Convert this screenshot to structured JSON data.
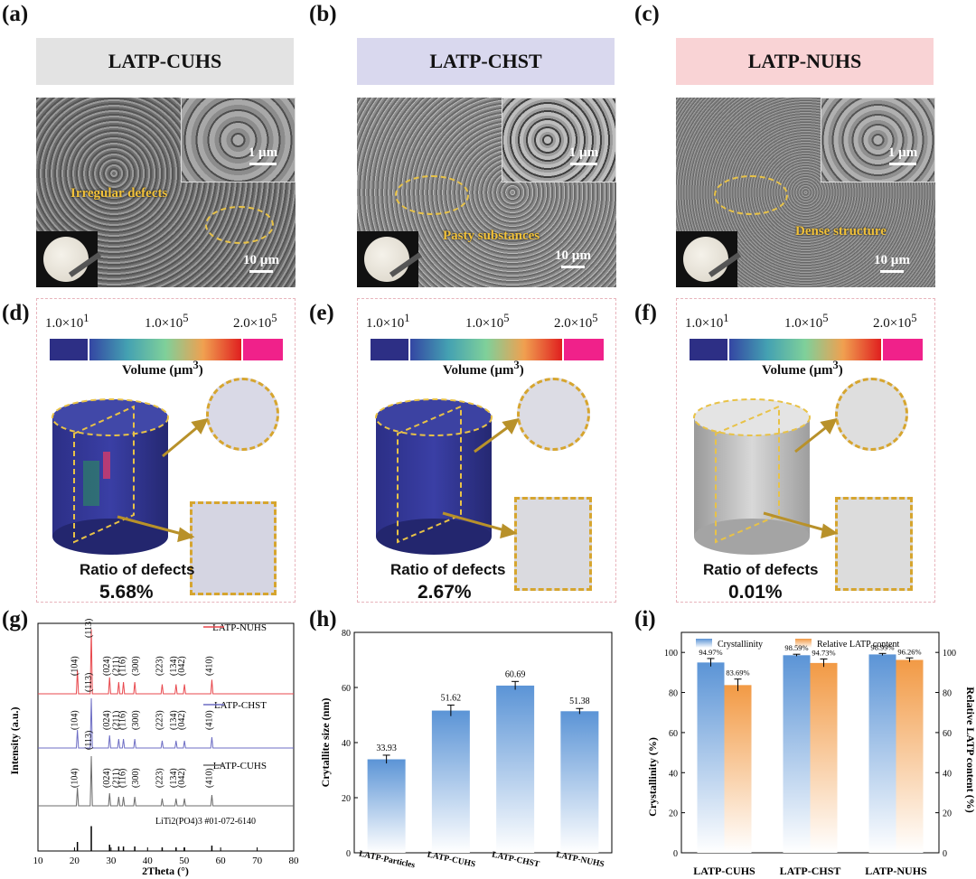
{
  "panel_labels": [
    "(a)",
    "(b)",
    "(c)",
    "(d)",
    "(e)",
    "(f)",
    "(g)",
    "(h)",
    "(i)"
  ],
  "headers": [
    "LATP-CUHS",
    "LATP-CHST",
    "LATP-NUHS"
  ],
  "colors": {
    "hdr_a": "#e3e3e3",
    "hdr_b": "#d9d8ee",
    "hdr_c": "#f9d3d5",
    "ann": "#f2c23a",
    "defect_dash": "#d6a52f",
    "nuhs": "#e8474c",
    "chst": "#6d6dc4",
    "cuhs": "#6b6b6b",
    "bar_blue": "#6aa2dc",
    "bar_orange": "#f29a45"
  },
  "sem": {
    "scale_inset": "1 µm",
    "scale_main": "10 µm",
    "annotations": [
      "Irregular defects",
      "Pasty substances",
      "Dense structure"
    ]
  },
  "colorbar": {
    "min": "1.0×10",
    "min_exp": "1",
    "mid": "1.0×10",
    "mid_exp": "5",
    "max": "2.0×10",
    "max_exp": "5",
    "label": "Volume (µm",
    "label_exp": "3",
    "label_end": ")"
  },
  "defects": {
    "title": "Ratio of defects",
    "values": [
      "5.68%",
      "2.67%",
      "0.01%"
    ]
  },
  "xrd": {
    "xlabel": "2Theta (°)",
    "ylabel": "Intensity (a.u.)",
    "xticks": [
      "10",
      "20",
      "30",
      "40",
      "50",
      "60",
      "70",
      "80"
    ],
    "series": [
      "LATP-NUHS",
      "LATP-CHST",
      "LATP-CUHS"
    ],
    "reference": "LiTi2(PO4)3 #01-072-6140",
    "peaks": [
      "(104)",
      "(113)",
      "(024)",
      "(211)",
      "(116)",
      "(300)",
      "(223)",
      "(134)",
      "(042)",
      "(410)"
    ]
  },
  "chart_data": [
    {
      "type": "bar",
      "title": "",
      "xlabel": "",
      "ylabel": "Crytallite size (nm)",
      "categories": [
        "LATP-Particles",
        "LATP-CUHS",
        "LATP-CHST",
        "LATP-NUHS"
      ],
      "values": [
        33.93,
        51.62,
        60.69,
        51.38
      ],
      "labels": [
        "33.93",
        "51.62",
        "60.69",
        "51.38"
      ],
      "errors": [
        1.5,
        2.0,
        1.5,
        1.0
      ],
      "ylim": [
        0,
        80
      ],
      "yticks": [
        "0",
        "20",
        "40",
        "60",
        "80"
      ]
    },
    {
      "type": "bar",
      "title": "",
      "categories": [
        "LATP-CUHS",
        "LATP-CHST",
        "LATP-NUHS"
      ],
      "series": [
        {
          "name": "Crystallinity",
          "values": [
            94.97,
            98.59,
            98.99
          ],
          "labels": [
            "94.97%",
            "98.59%",
            "98.99%"
          ],
          "errors": [
            2,
            0.5,
            0.5
          ]
        },
        {
          "name": "Relative LATP content",
          "values": [
            83.69,
            94.73,
            96.26
          ],
          "labels": [
            "83.69%",
            "94.73%",
            "96.26%"
          ],
          "errors": [
            3,
            2,
            1
          ]
        }
      ],
      "ylabel": "Crystallinity (%)",
      "y2label": "Relative LATP content (%)",
      "ylim": [
        0,
        100
      ],
      "yticks": [
        "0",
        "20",
        "40",
        "60",
        "80",
        "100"
      ]
    }
  ]
}
